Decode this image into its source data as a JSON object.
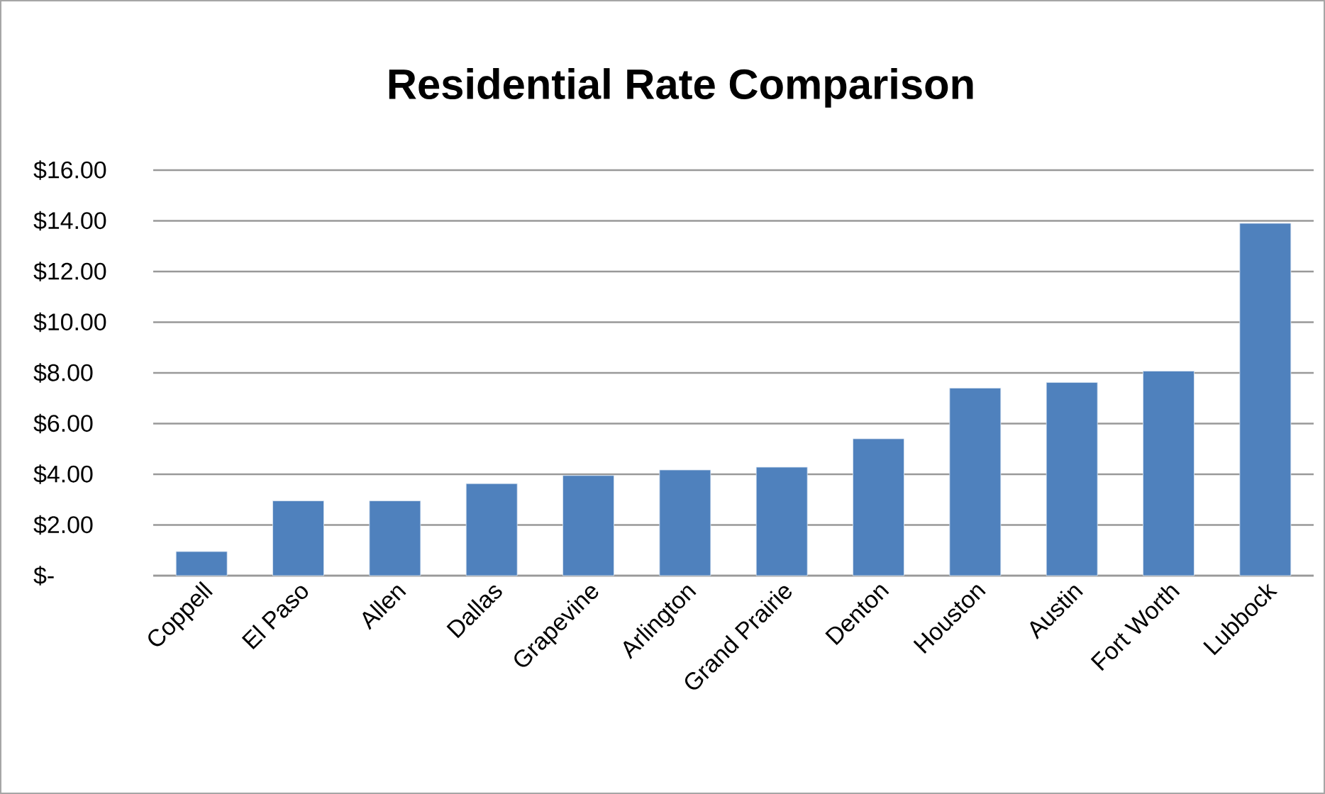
{
  "chart_data": {
    "type": "bar",
    "title": "Residential Rate Comparison",
    "categories": [
      "Coppell",
      "El Paso",
      "Allen",
      "Dallas",
      "Grapevine",
      "Arlington",
      "Grand Prairie",
      "Denton",
      "Houston",
      "Austin",
      "Fort Worth",
      "Lubbock"
    ],
    "values": [
      0.95,
      2.95,
      2.95,
      3.63,
      3.95,
      4.17,
      4.28,
      5.4,
      7.4,
      7.62,
      8.07,
      13.9
    ],
    "color": "#4f81bd",
    "ylim": [
      0,
      16
    ],
    "yticks": [
      {
        "value": 0,
        "label": "$-"
      },
      {
        "value": 2,
        "label": "$2.00"
      },
      {
        "value": 4,
        "label": "$4.00"
      },
      {
        "value": 6,
        "label": "$6.00"
      },
      {
        "value": 8,
        "label": "$8.00"
      },
      {
        "value": 10,
        "label": "$10.00"
      },
      {
        "value": 12,
        "label": "$12.00"
      },
      {
        "value": 14,
        "label": "$14.00"
      },
      {
        "value": 16,
        "label": "$16.00"
      }
    ],
    "grid": "y"
  }
}
